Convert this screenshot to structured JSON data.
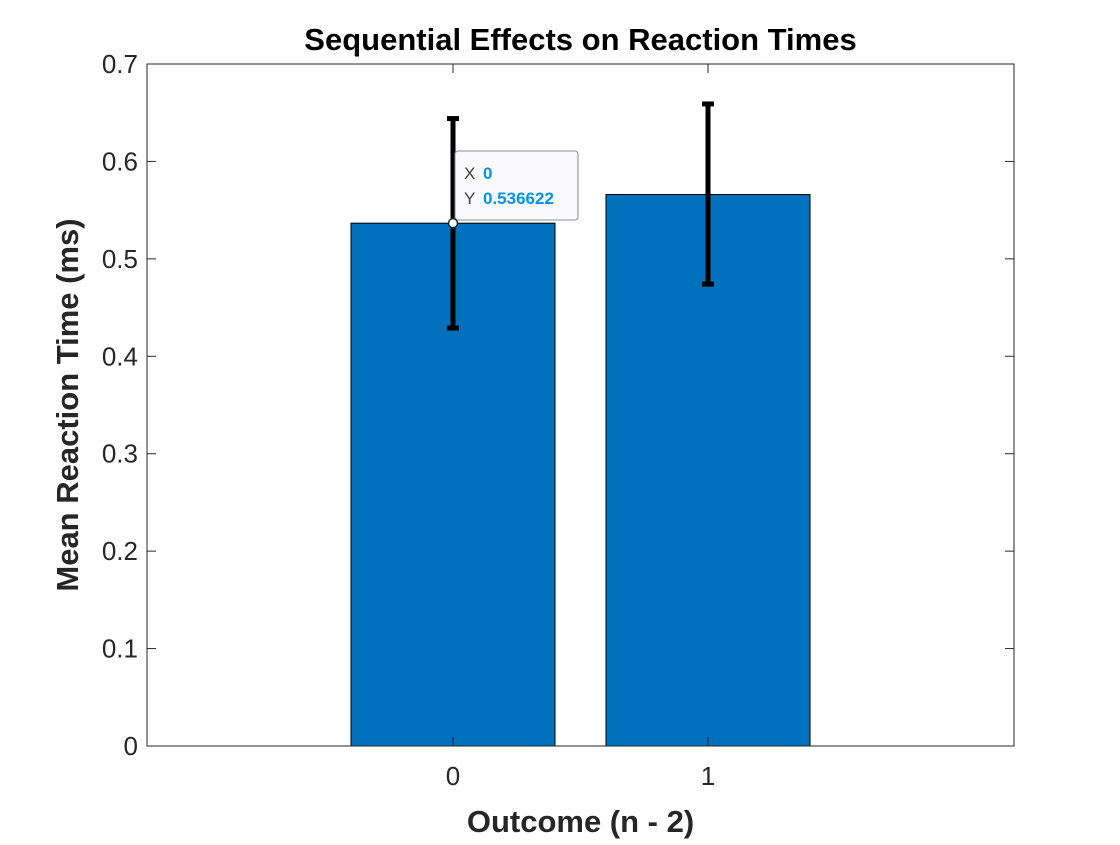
{
  "colors": {
    "bar": "#0072BD",
    "error_bar": "#000000",
    "axes": "#262626",
    "datatip_value": "#0094E8"
  },
  "chart_data": {
    "type": "bar",
    "title": "Sequential Effects on Reaction Times",
    "xlabel": "Outcome (n - 2)",
    "ylabel": "Mean Reaction Time (ms)",
    "categories": [
      "0",
      "1"
    ],
    "x": [
      0,
      1
    ],
    "xlim": [
      -1.2,
      2.2
    ],
    "ylim": [
      0,
      0.7
    ],
    "yticks": [
      0,
      0.1,
      0.2,
      0.3,
      0.4,
      0.5,
      0.6,
      0.7
    ],
    "ytick_labels": [
      "0",
      "0.1",
      "0.2",
      "0.3",
      "0.4",
      "0.5",
      "0.6",
      "0.7"
    ],
    "bar_width": 0.8,
    "values": [
      0.536622,
      0.566
    ],
    "error_low": [
      0.429,
      0.474
    ],
    "error_high": [
      0.644,
      0.659
    ],
    "grid": false,
    "box": true
  },
  "datatip": {
    "x_key": "X",
    "x_value": "0",
    "y_key": "Y",
    "y_value": "0.536622",
    "bar_index": 0
  }
}
